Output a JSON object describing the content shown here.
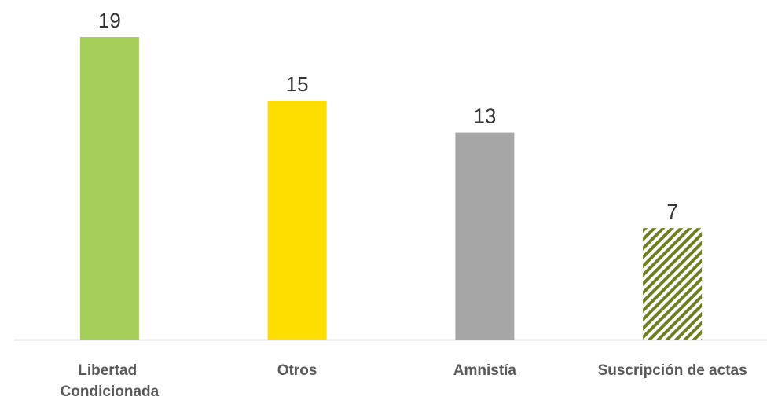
{
  "chart_data": {
    "type": "bar",
    "categories": [
      "Libertad Condicionada",
      "Otros",
      "Amnistía",
      "Suscripción de actas"
    ],
    "values": [
      19,
      15,
      13,
      7
    ],
    "colors": [
      "#a5cd5a",
      "#fddd00",
      "#a6a6a6",
      "#6e7f22"
    ],
    "hatched": [
      false,
      false,
      false,
      true
    ],
    "ylim": [
      0,
      21
    ]
  }
}
